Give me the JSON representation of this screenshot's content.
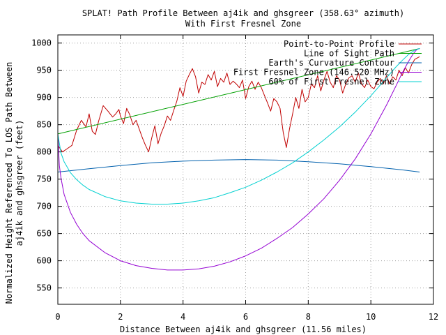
{
  "chart_data": {
    "type": "line",
    "title": "SPLAT! Path Profile Between aj4ik and ghsgreer (358.63° azimuth)",
    "subtitle": "With First Fresnel Zone",
    "xlabel": "Distance Between aj4ik and ghsgreer (11.56 miles)",
    "ylabel_line1": "Normalized Height Referenced To LOS Path Between",
    "ylabel_line2": "aj4ik and ghsgreer (feet)",
    "xlim": [
      0,
      12
    ],
    "ylim": [
      520,
      1015
    ],
    "xticks": [
      0,
      2,
      4,
      6,
      8,
      10,
      12
    ],
    "yticks": [
      550,
      600,
      650,
      700,
      750,
      800,
      850,
      900,
      950,
      1000
    ],
    "grid": true,
    "legend_position": "top-right",
    "series": [
      {
        "name": "Point-to-Point Profile",
        "color": "#c00000",
        "points": [
          [
            0.0,
            812
          ],
          [
            0.15,
            800
          ],
          [
            0.3,
            806
          ],
          [
            0.45,
            812
          ],
          [
            0.6,
            840
          ],
          [
            0.75,
            858
          ],
          [
            0.9,
            846
          ],
          [
            1.0,
            870
          ],
          [
            1.1,
            838
          ],
          [
            1.2,
            832
          ],
          [
            1.3,
            856
          ],
          [
            1.45,
            885
          ],
          [
            1.6,
            875
          ],
          [
            1.75,
            864
          ],
          [
            1.85,
            870
          ],
          [
            1.95,
            878
          ],
          [
            2.0,
            866
          ],
          [
            2.1,
            852
          ],
          [
            2.2,
            880
          ],
          [
            2.3,
            868
          ],
          [
            2.4,
            850
          ],
          [
            2.5,
            858
          ],
          [
            2.6,
            842
          ],
          [
            2.7,
            826
          ],
          [
            2.8,
            812
          ],
          [
            2.9,
            800
          ],
          [
            3.0,
            826
          ],
          [
            3.1,
            848
          ],
          [
            3.2,
            815
          ],
          [
            3.3,
            834
          ],
          [
            3.4,
            848
          ],
          [
            3.5,
            866
          ],
          [
            3.6,
            858
          ],
          [
            3.7,
            876
          ],
          [
            3.8,
            893
          ],
          [
            3.9,
            918
          ],
          [
            4.0,
            902
          ],
          [
            4.1,
            930
          ],
          [
            4.2,
            942
          ],
          [
            4.3,
            953
          ],
          [
            4.4,
            938
          ],
          [
            4.5,
            908
          ],
          [
            4.6,
            928
          ],
          [
            4.7,
            924
          ],
          [
            4.8,
            942
          ],
          [
            4.9,
            932
          ],
          [
            5.0,
            948
          ],
          [
            5.1,
            920
          ],
          [
            5.2,
            935
          ],
          [
            5.3,
            928
          ],
          [
            5.4,
            945
          ],
          [
            5.5,
            924
          ],
          [
            5.6,
            930
          ],
          [
            5.7,
            925
          ],
          [
            5.8,
            918
          ],
          [
            5.9,
            932
          ],
          [
            6.0,
            898
          ],
          [
            6.1,
            920
          ],
          [
            6.2,
            930
          ],
          [
            6.3,
            915
          ],
          [
            6.4,
            928
          ],
          [
            6.5,
            918
          ],
          [
            6.6,
            904
          ],
          [
            6.7,
            890
          ],
          [
            6.8,
            875
          ],
          [
            6.9,
            898
          ],
          [
            7.0,
            892
          ],
          [
            7.1,
            880
          ],
          [
            7.2,
            836
          ],
          [
            7.3,
            808
          ],
          [
            7.4,
            842
          ],
          [
            7.5,
            870
          ],
          [
            7.6,
            900
          ],
          [
            7.7,
            880
          ],
          [
            7.8,
            915
          ],
          [
            7.9,
            892
          ],
          [
            8.0,
            900
          ],
          [
            8.1,
            925
          ],
          [
            8.2,
            918
          ],
          [
            8.3,
            940
          ],
          [
            8.4,
            912
          ],
          [
            8.5,
            932
          ],
          [
            8.6,
            948
          ],
          [
            8.7,
            928
          ],
          [
            8.8,
            918
          ],
          [
            8.9,
            940
          ],
          [
            9.0,
            932
          ],
          [
            9.1,
            908
          ],
          [
            9.2,
            925
          ],
          [
            9.3,
            936
          ],
          [
            9.4,
            940
          ],
          [
            9.5,
            928
          ],
          [
            9.6,
            945
          ],
          [
            9.7,
            925
          ],
          [
            9.8,
            918
          ],
          [
            9.9,
            932
          ],
          [
            10.0,
            920
          ],
          [
            10.1,
            916
          ],
          [
            10.2,
            928
          ],
          [
            10.3,
            935
          ],
          [
            10.4,
            925
          ],
          [
            10.5,
            940
          ],
          [
            10.6,
            925
          ],
          [
            10.7,
            938
          ],
          [
            10.8,
            932
          ],
          [
            10.9,
            950
          ],
          [
            11.0,
            940
          ],
          [
            11.1,
            955
          ],
          [
            11.2,
            945
          ],
          [
            11.3,
            960
          ],
          [
            11.4,
            970
          ],
          [
            11.56,
            975
          ]
        ]
      },
      {
        "name": "Line of Sight Path",
        "color": "#00a000",
        "points": [
          [
            0.0,
            833
          ],
          [
            11.56,
            990
          ]
        ]
      },
      {
        "name": "Earth's Curvature Contour",
        "color": "#0060ad",
        "points": [
          [
            0.0,
            763
          ],
          [
            1.0,
            769
          ],
          [
            2.0,
            775
          ],
          [
            3.0,
            780
          ],
          [
            4.0,
            783
          ],
          [
            5.0,
            785
          ],
          [
            6.0,
            786
          ],
          [
            7.0,
            785
          ],
          [
            8.0,
            782
          ],
          [
            9.0,
            778
          ],
          [
            10.0,
            773
          ],
          [
            11.0,
            767
          ],
          [
            11.56,
            763
          ]
        ]
      },
      {
        "name": "First Fresnel Zone (146.520 MHz)",
        "color": "#9400d3",
        "points": [
          [
            0.0,
            833
          ],
          [
            0.05,
            775
          ],
          [
            0.1,
            752
          ],
          [
            0.2,
            722
          ],
          [
            0.4,
            689
          ],
          [
            0.6,
            667
          ],
          [
            0.8,
            650
          ],
          [
            1.0,
            637
          ],
          [
            1.5,
            615
          ],
          [
            2.0,
            600
          ],
          [
            2.5,
            591
          ],
          [
            3.0,
            586
          ],
          [
            3.5,
            583
          ],
          [
            4.0,
            583
          ],
          [
            4.5,
            585
          ],
          [
            5.0,
            590
          ],
          [
            5.5,
            598
          ],
          [
            6.0,
            609
          ],
          [
            6.5,
            623
          ],
          [
            7.0,
            641
          ],
          [
            7.5,
            661
          ],
          [
            8.0,
            686
          ],
          [
            8.5,
            714
          ],
          [
            9.0,
            748
          ],
          [
            9.5,
            787
          ],
          [
            10.0,
            833
          ],
          [
            10.5,
            886
          ],
          [
            10.8,
            921
          ],
          [
            11.0,
            945
          ],
          [
            11.2,
            966
          ],
          [
            11.35,
            980
          ],
          [
            11.45,
            987
          ],
          [
            11.5,
            989
          ],
          [
            11.56,
            990
          ]
        ]
      },
      {
        "name": "60% of First Fresnel Zone",
        "color": "#00d0d0",
        "points": [
          [
            0.0,
            833
          ],
          [
            0.1,
            798
          ],
          [
            0.2,
            782
          ],
          [
            0.4,
            762
          ],
          [
            0.6,
            749
          ],
          [
            0.8,
            739
          ],
          [
            1.0,
            731
          ],
          [
            1.5,
            718
          ],
          [
            2.0,
            710
          ],
          [
            2.5,
            706
          ],
          [
            3.0,
            704
          ],
          [
            3.5,
            704
          ],
          [
            4.0,
            706
          ],
          [
            4.5,
            710
          ],
          [
            5.0,
            716
          ],
          [
            5.5,
            725
          ],
          [
            6.0,
            735
          ],
          [
            6.5,
            748
          ],
          [
            7.0,
            763
          ],
          [
            7.5,
            780
          ],
          [
            8.0,
            800
          ],
          [
            8.5,
            822
          ],
          [
            9.0,
            846
          ],
          [
            9.5,
            873
          ],
          [
            10.0,
            903
          ],
          [
            10.5,
            936
          ],
          [
            10.8,
            956
          ],
          [
            11.0,
            968
          ],
          [
            11.2,
            979
          ],
          [
            11.4,
            987
          ],
          [
            11.56,
            990
          ]
        ]
      }
    ]
  }
}
